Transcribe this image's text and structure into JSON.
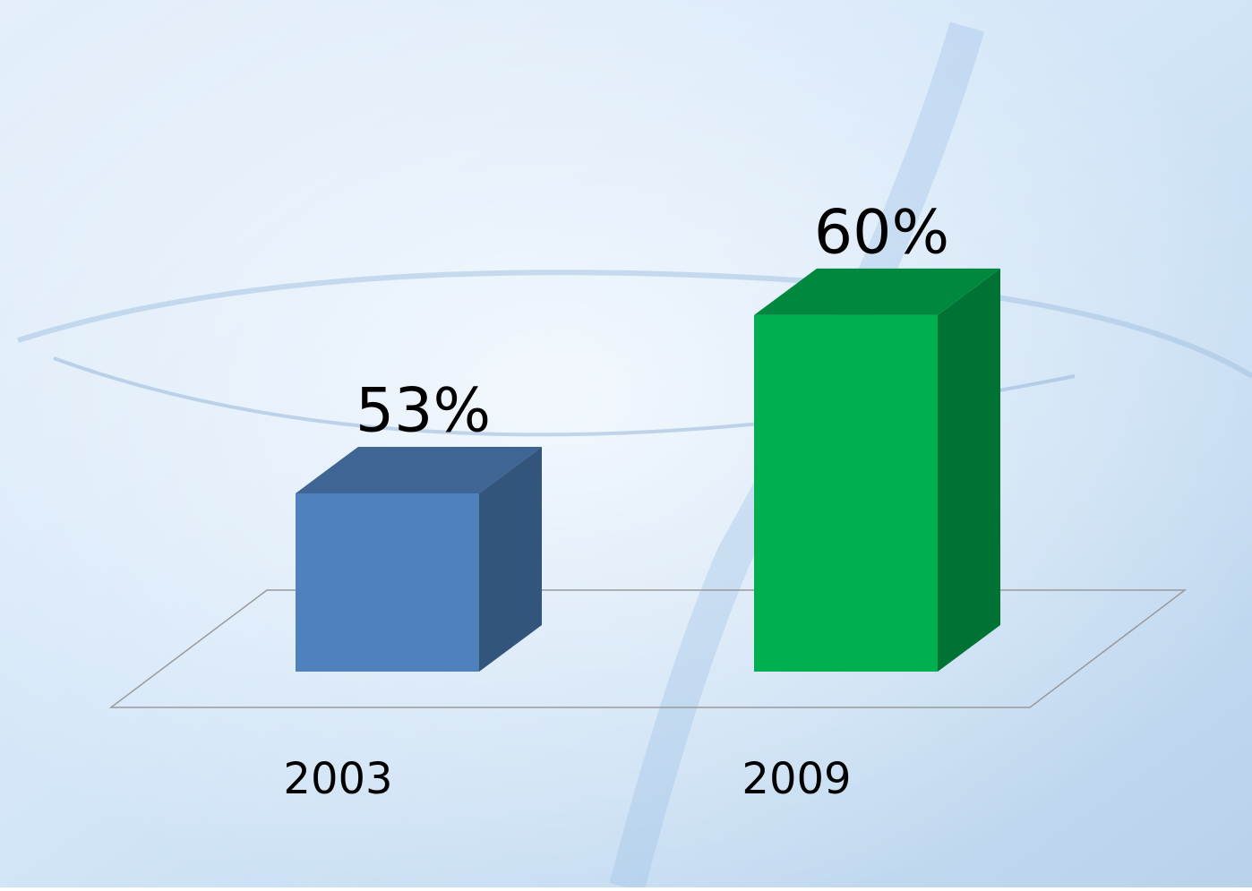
{
  "chart_data": {
    "type": "bar3d",
    "categories": [
      "2003",
      "2009"
    ],
    "values": [
      53,
      60
    ],
    "value_labels": [
      "53%",
      "60%"
    ],
    "colors": [
      "#4f81bd",
      "#00b050"
    ],
    "ylim": [
      46,
      62
    ]
  }
}
